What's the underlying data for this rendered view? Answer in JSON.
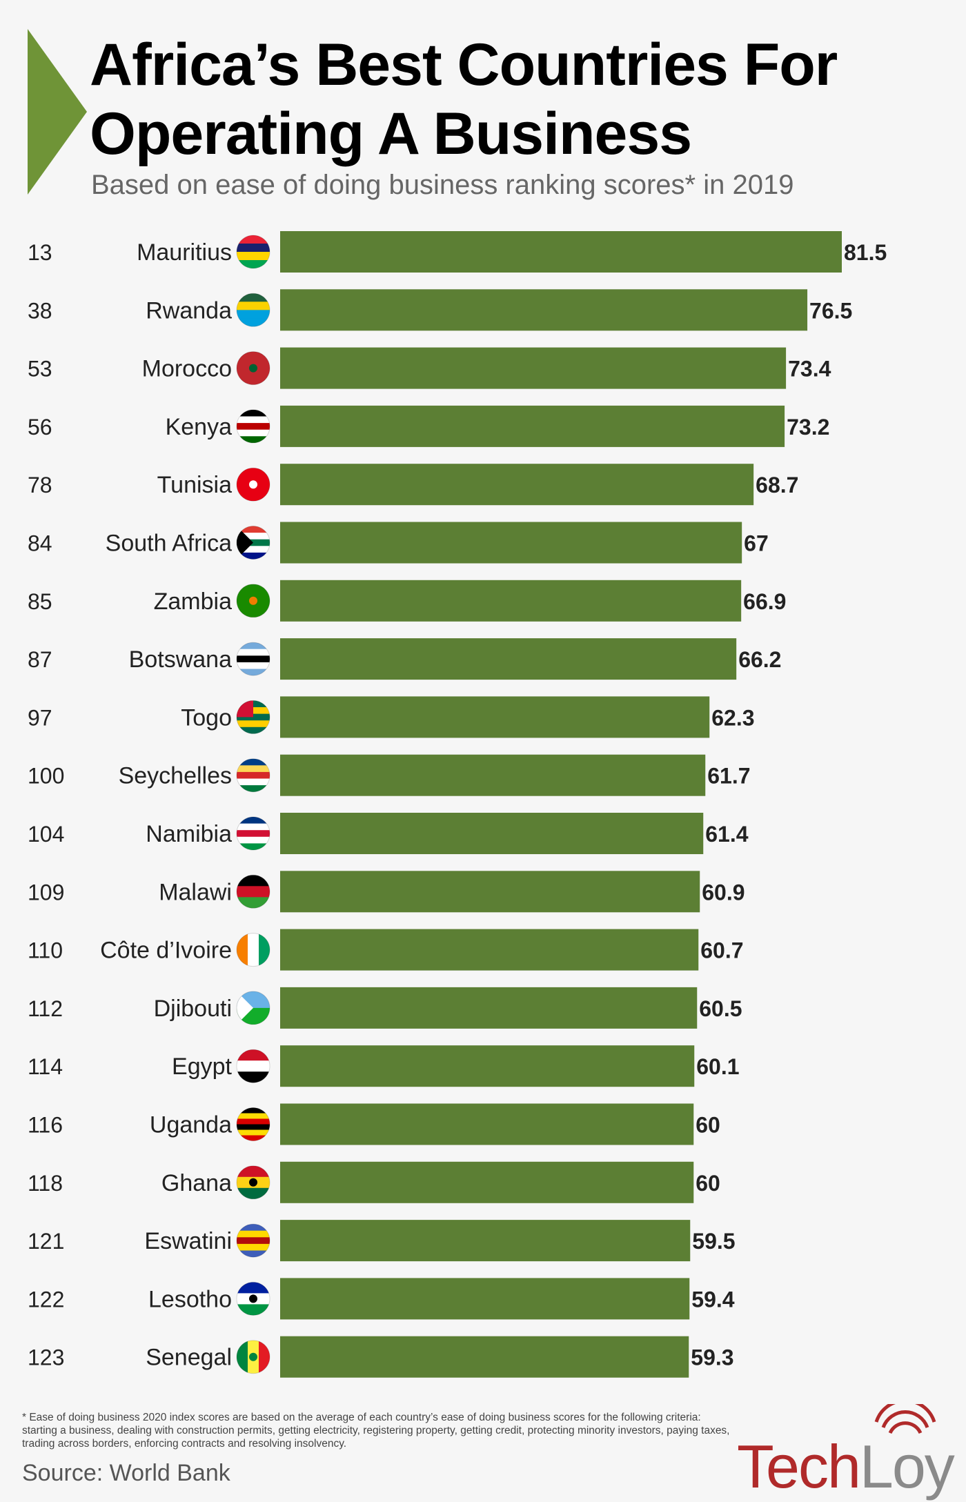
{
  "colors": {
    "bar": "#5c7f34",
    "triangle": "#6f9437",
    "logo_primary": "#b02a2a",
    "logo_secondary": "#8a8a8a"
  },
  "header": {
    "title": "Africa’s Best Countries For Operating A Business",
    "subtitle": "Based on ease of doing business ranking scores* in 2019"
  },
  "chart_data": {
    "type": "bar",
    "orientation": "horizontal",
    "title": "Africa’s Best Countries For Operating A Business",
    "subtitle": "Based on ease of doing business ranking scores* in 2019",
    "xlabel": "",
    "ylabel": "",
    "xlim": [
      0,
      85
    ],
    "grid": false,
    "categories": [
      "Mauritius",
      "Rwanda",
      "Morocco",
      "Kenya",
      "Tunisia",
      "South Africa",
      "Zambia",
      "Botswana",
      "Togo",
      "Seychelles",
      "Namibia",
      "Malawi",
      "Côte d’Ivoire",
      "Djibouti",
      "Egypt",
      "Uganda",
      "Ghana",
      "Eswatini",
      "Lesotho",
      "Senegal"
    ],
    "ranks": [
      "13",
      "38",
      "53",
      "56",
      "78",
      "84",
      "85",
      "87",
      "97",
      "100",
      "104",
      "109",
      "110",
      "112",
      "114",
      "116",
      "118",
      "121",
      "122",
      "123"
    ],
    "values": [
      81.5,
      76.5,
      73.4,
      73.2,
      68.7,
      67,
      66.9,
      66.2,
      62.3,
      61.7,
      61.4,
      60.9,
      60.7,
      60.5,
      60.1,
      60,
      60,
      59.5,
      59.4,
      59.3
    ],
    "value_labels": [
      "81.5",
      "76.5",
      "73.4",
      "73.2",
      "68.7",
      "67",
      "66.9",
      "66.2",
      "62.3",
      "61.7",
      "61.4",
      "60.9",
      "60.7",
      "60.5",
      "60.1",
      "60",
      "60",
      "59.5",
      "59.4",
      "59.3"
    ],
    "flags": [
      {
        "type": "h",
        "stripes": [
          "#eb2336",
          "#1a206d",
          "#ffd500",
          "#00a551"
        ]
      },
      {
        "type": "h",
        "stripes": [
          "#20603d",
          "#fad201",
          "#00a1de",
          "#00a1de"
        ]
      },
      {
        "type": "solid",
        "color": "#c1272d",
        "emblem": "#006233"
      },
      {
        "type": "h",
        "stripes": [
          "#000000",
          "#ffffff",
          "#bb0000",
          "#ffffff",
          "#006600"
        ]
      },
      {
        "type": "solid",
        "color": "#e70013",
        "emblem": "#ffffff"
      },
      {
        "type": "h",
        "stripes": [
          "#e03c31",
          "#ffffff",
          "#007749",
          "#ffffff",
          "#001489"
        ],
        "chevron": "#000000"
      },
      {
        "type": "solid",
        "color": "#198a00",
        "emblem": "#ef7d00"
      },
      {
        "type": "h",
        "stripes": [
          "#75aadb",
          "#ffffff",
          "#000000",
          "#ffffff",
          "#75aadb"
        ]
      },
      {
        "type": "h",
        "stripes": [
          "#006a4e",
          "#ffce00",
          "#006a4e",
          "#ffce00",
          "#006a4e"
        ],
        "canton": "#d21034"
      },
      {
        "type": "h",
        "stripes": [
          "#003f87",
          "#fcd856",
          "#d62828",
          "#ffffff",
          "#007a3d"
        ]
      },
      {
        "type": "h",
        "stripes": [
          "#003580",
          "#ffffff",
          "#d21034",
          "#ffffff",
          "#009543"
        ]
      },
      {
        "type": "h",
        "stripes": [
          "#000000",
          "#ce1126",
          "#339e35"
        ]
      },
      {
        "type": "v",
        "stripes": [
          "#f77f00",
          "#ffffff",
          "#009e60"
        ]
      },
      {
        "type": "h",
        "stripes": [
          "#6ab2e7",
          "#12ad2b"
        ],
        "chevron": "#ffffff"
      },
      {
        "type": "h",
        "stripes": [
          "#ce1126",
          "#ffffff",
          "#000000"
        ]
      },
      {
        "type": "h",
        "stripes": [
          "#000000",
          "#fcdc04",
          "#d90000",
          "#000000",
          "#fcdc04",
          "#d90000"
        ]
      },
      {
        "type": "h",
        "stripes": [
          "#ce1126",
          "#fcd116",
          "#006b3f"
        ],
        "emblem": "#000000"
      },
      {
        "type": "h",
        "stripes": [
          "#3e5eb9",
          "#ffd900",
          "#b10c0c",
          "#ffd900",
          "#3e5eb9"
        ]
      },
      {
        "type": "h",
        "stripes": [
          "#00209f",
          "#ffffff",
          "#009543"
        ],
        "emblem": "#000000"
      },
      {
        "type": "v",
        "stripes": [
          "#00853f",
          "#fdef42",
          "#e31b23"
        ],
        "emblem": "#00853f"
      }
    ]
  },
  "footer": {
    "footnote": "* Ease of doing business 2020 index scores are based on the average of each country’s ease of doing business scores for the following criteria: starting a business, dealing with construction permits, getting electricity, registering property, getting credit, protecting minority investors, paying taxes, trading across borders, enforcing contracts and resolving insolvency.",
    "source": "Source: World Bank",
    "logo_primary": "Tech",
    "logo_secondary": "Loy"
  }
}
